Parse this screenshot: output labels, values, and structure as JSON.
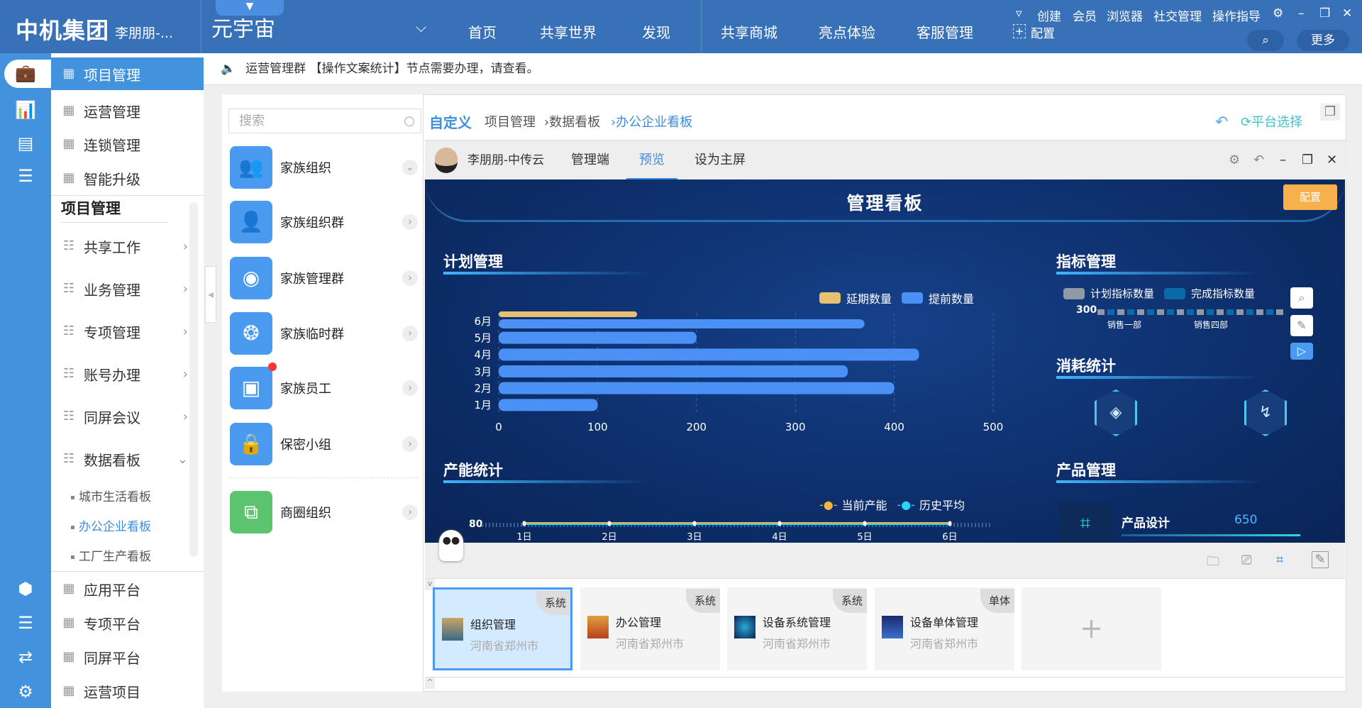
{
  "header": {
    "company": "中机集团",
    "user": "李朋朋-...",
    "space": "元宇宙",
    "nav": [
      "首页",
      "共享世界",
      "发现",
      "共享商城",
      "亮点体验",
      "客服管理"
    ],
    "links": [
      "创建",
      "会员",
      "浏览器",
      "社交管理",
      "操作指导"
    ],
    "config": "配置",
    "more": "更多"
  },
  "notice": "运营管理群 【操作文案统计】节点需要办理，请查看。",
  "nav": {
    "top_items": [
      "项目管理",
      "运营管理",
      "连锁管理",
      "智能升级"
    ],
    "section_title": "项目管理",
    "groups": [
      "共享工作",
      "业务管理",
      "专项管理",
      "账号办理",
      "同屏会议",
      "数据看板"
    ],
    "board_children": [
      "城市生活看板",
      "办公企业看板",
      "工厂生产看板"
    ],
    "bottom_items": [
      "应用平台",
      "专项平台",
      "同屏平台",
      "运营项目"
    ]
  },
  "group_list": {
    "search_placeholder": "搜索",
    "items": [
      "家族组织",
      "家族组织群",
      "家族管理群",
      "家族临时群",
      "家族员工",
      "保密小组",
      "商圈组织"
    ]
  },
  "breadcrumb": {
    "title": "自定义",
    "path": [
      "项目管理",
      "数据看板",
      "办公企业看板"
    ],
    "platform": "平台选择"
  },
  "tabs": {
    "user": "李朋朋-中传云",
    "items": [
      "管理端",
      "预览",
      "设为主屏"
    ],
    "active": "预览"
  },
  "dashboard": {
    "title": "管理看板",
    "config": "配置",
    "sections": [
      "计划管理",
      "指标管理",
      "消耗统计",
      "产能统计",
      "产品管理"
    ],
    "product": {
      "name": "产品设计",
      "value": "650"
    }
  },
  "chart_data": [
    {
      "type": "bar",
      "orientation": "horizontal",
      "categories": [
        "1月",
        "2月",
        "3月",
        "4月",
        "5月",
        "6月"
      ],
      "series": [
        {
          "name": "延期数量",
          "color": "#e9bf72",
          "values": [
            0,
            0,
            0,
            0,
            0,
            140
          ]
        },
        {
          "name": "提前数量",
          "color": "#4a90f5",
          "values": [
            100,
            400,
            353,
            425,
            200,
            370
          ]
        }
      ],
      "xlim": [
        0,
        500
      ],
      "xticks": [
        0,
        100,
        200,
        300,
        400,
        500
      ],
      "legend": "top-right",
      "grid": true
    },
    {
      "type": "bar",
      "categories": [
        "销售一部",
        "销售四部"
      ],
      "series": [
        {
          "name": "计划指标数量",
          "color": "#8f9aa6"
        },
        {
          "name": "完成指标数量",
          "color": "#0a6aa8"
        }
      ],
      "yticks": [
        "300"
      ]
    },
    {
      "type": "line",
      "categories": [
        "1日",
        "2日",
        "3日",
        "4日",
        "5日",
        "6日"
      ],
      "series": [
        {
          "name": "当前产能",
          "color": "#f2b544",
          "values": [
            80,
            80,
            80,
            80,
            80,
            80
          ]
        },
        {
          "name": "历史平均",
          "color": "#27d5f5",
          "values": [
            80,
            80,
            80,
            80,
            80,
            80
          ]
        }
      ],
      "yticks": [
        "80"
      ]
    }
  ],
  "cards": [
    {
      "name": "组织管理",
      "loc": "河南省郑州市",
      "badge": "系统"
    },
    {
      "name": "办公管理",
      "loc": "河南省郑州市",
      "badge": "系统"
    },
    {
      "name": "设备系统管理",
      "loc": "河南省郑州市",
      "badge": "系统"
    },
    {
      "name": "设备单体管理",
      "loc": "河南省郑州市",
      "badge": "单体"
    }
  ]
}
